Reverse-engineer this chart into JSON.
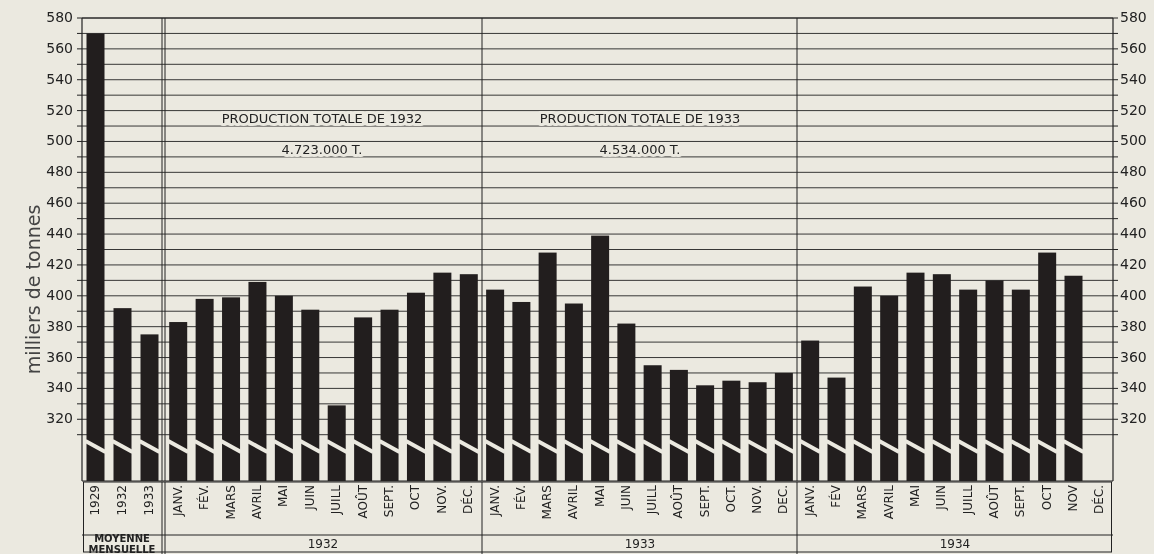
{
  "chart_data": {
    "type": "bar",
    "ylabel": "milliers de tonnes",
    "categories": [
      "1929",
      "1932",
      "1933",
      "JANV.",
      "FÉV.",
      "MARS",
      "AVRIL",
      "MAI",
      "JUIN",
      "JUILL",
      "AOÛT",
      "SEPT.",
      "OCT",
      "NOV.",
      "DÉC.",
      "JANV.",
      "FÉV.",
      "MARS",
      "AVRIL",
      "MAI",
      "JUIN",
      "JUILL",
      "AOÛT",
      "SEPT.",
      "OCT.",
      "NOV.",
      "DEC.",
      "JANV.",
      "FÉV",
      "MARS",
      "AVRIL",
      "MAI",
      "JUIN",
      "JUILL",
      "AOÛT",
      "SEPT.",
      "OCT",
      "NOV",
      "DÉC."
    ],
    "values": [
      570,
      392,
      375,
      383,
      398,
      399,
      409,
      400,
      391,
      329,
      386,
      391,
      402,
      415,
      414,
      404,
      396,
      428,
      395,
      439,
      382,
      355,
      352,
      342,
      345,
      344,
      350,
      371,
      347,
      406,
      400,
      415,
      414,
      404,
      410,
      404,
      428,
      413,
      null
    ],
    "color": "#221e1e",
    "ylim": [
      280,
      580
    ],
    "yticks": [
      {
        "value": 310,
        "label": null
      },
      320,
      {
        "value": 330,
        "label": null
      },
      340,
      {
        "value": 350,
        "label": null
      },
      360,
      {
        "value": 370,
        "label": null
      },
      380,
      {
        "value": 390,
        "label": null
      },
      400,
      {
        "value": 410,
        "label": null
      },
      420,
      {
        "value": 430,
        "label": null
      },
      440,
      {
        "value": 450,
        "label": null
      },
      460,
      {
        "value": 470,
        "label": null
      },
      480,
      {
        "value": 490,
        "label": null
      },
      500,
      {
        "value": 510,
        "label": null
      },
      520,
      {
        "value": 530,
        "label": null
      },
      540,
      {
        "value": 550,
        "label": null
      },
      560,
      {
        "value": 570,
        "label": null
      },
      580
    ],
    "y2lim": [
      280,
      580
    ],
    "y2ticks": [
      {
        "value": 310,
        "label": null
      },
      320,
      {
        "value": 330,
        "label": null
      },
      340,
      {
        "value": 350,
        "label": null
      },
      360,
      {
        "value": 370,
        "label": null
      },
      380,
      {
        "value": 390,
        "label": null
      },
      400,
      {
        "value": 410,
        "label": null
      },
      420,
      {
        "value": 430,
        "label": null
      },
      440,
      {
        "value": 450,
        "label": null
      },
      460,
      {
        "value": 470,
        "label": null
      },
      480,
      {
        "value": 490,
        "label": null
      },
      500,
      {
        "value": 510,
        "label": null
      },
      520,
      {
        "value": 530,
        "label": null
      },
      540,
      {
        "value": 550,
        "label": null
      },
      560,
      {
        "value": 570,
        "label": null
      },
      580
    ],
    "grid": "y",
    "annotations": [
      "PRODUCTION TOTALE DE 1932",
      "4.723.000 T.",
      "PRODUCTION TOTALE DE 1933",
      "4.534.000 T.",
      "MOYENNE MENSUELLE",
      "1932",
      "1933",
      "1934"
    ]
  }
}
